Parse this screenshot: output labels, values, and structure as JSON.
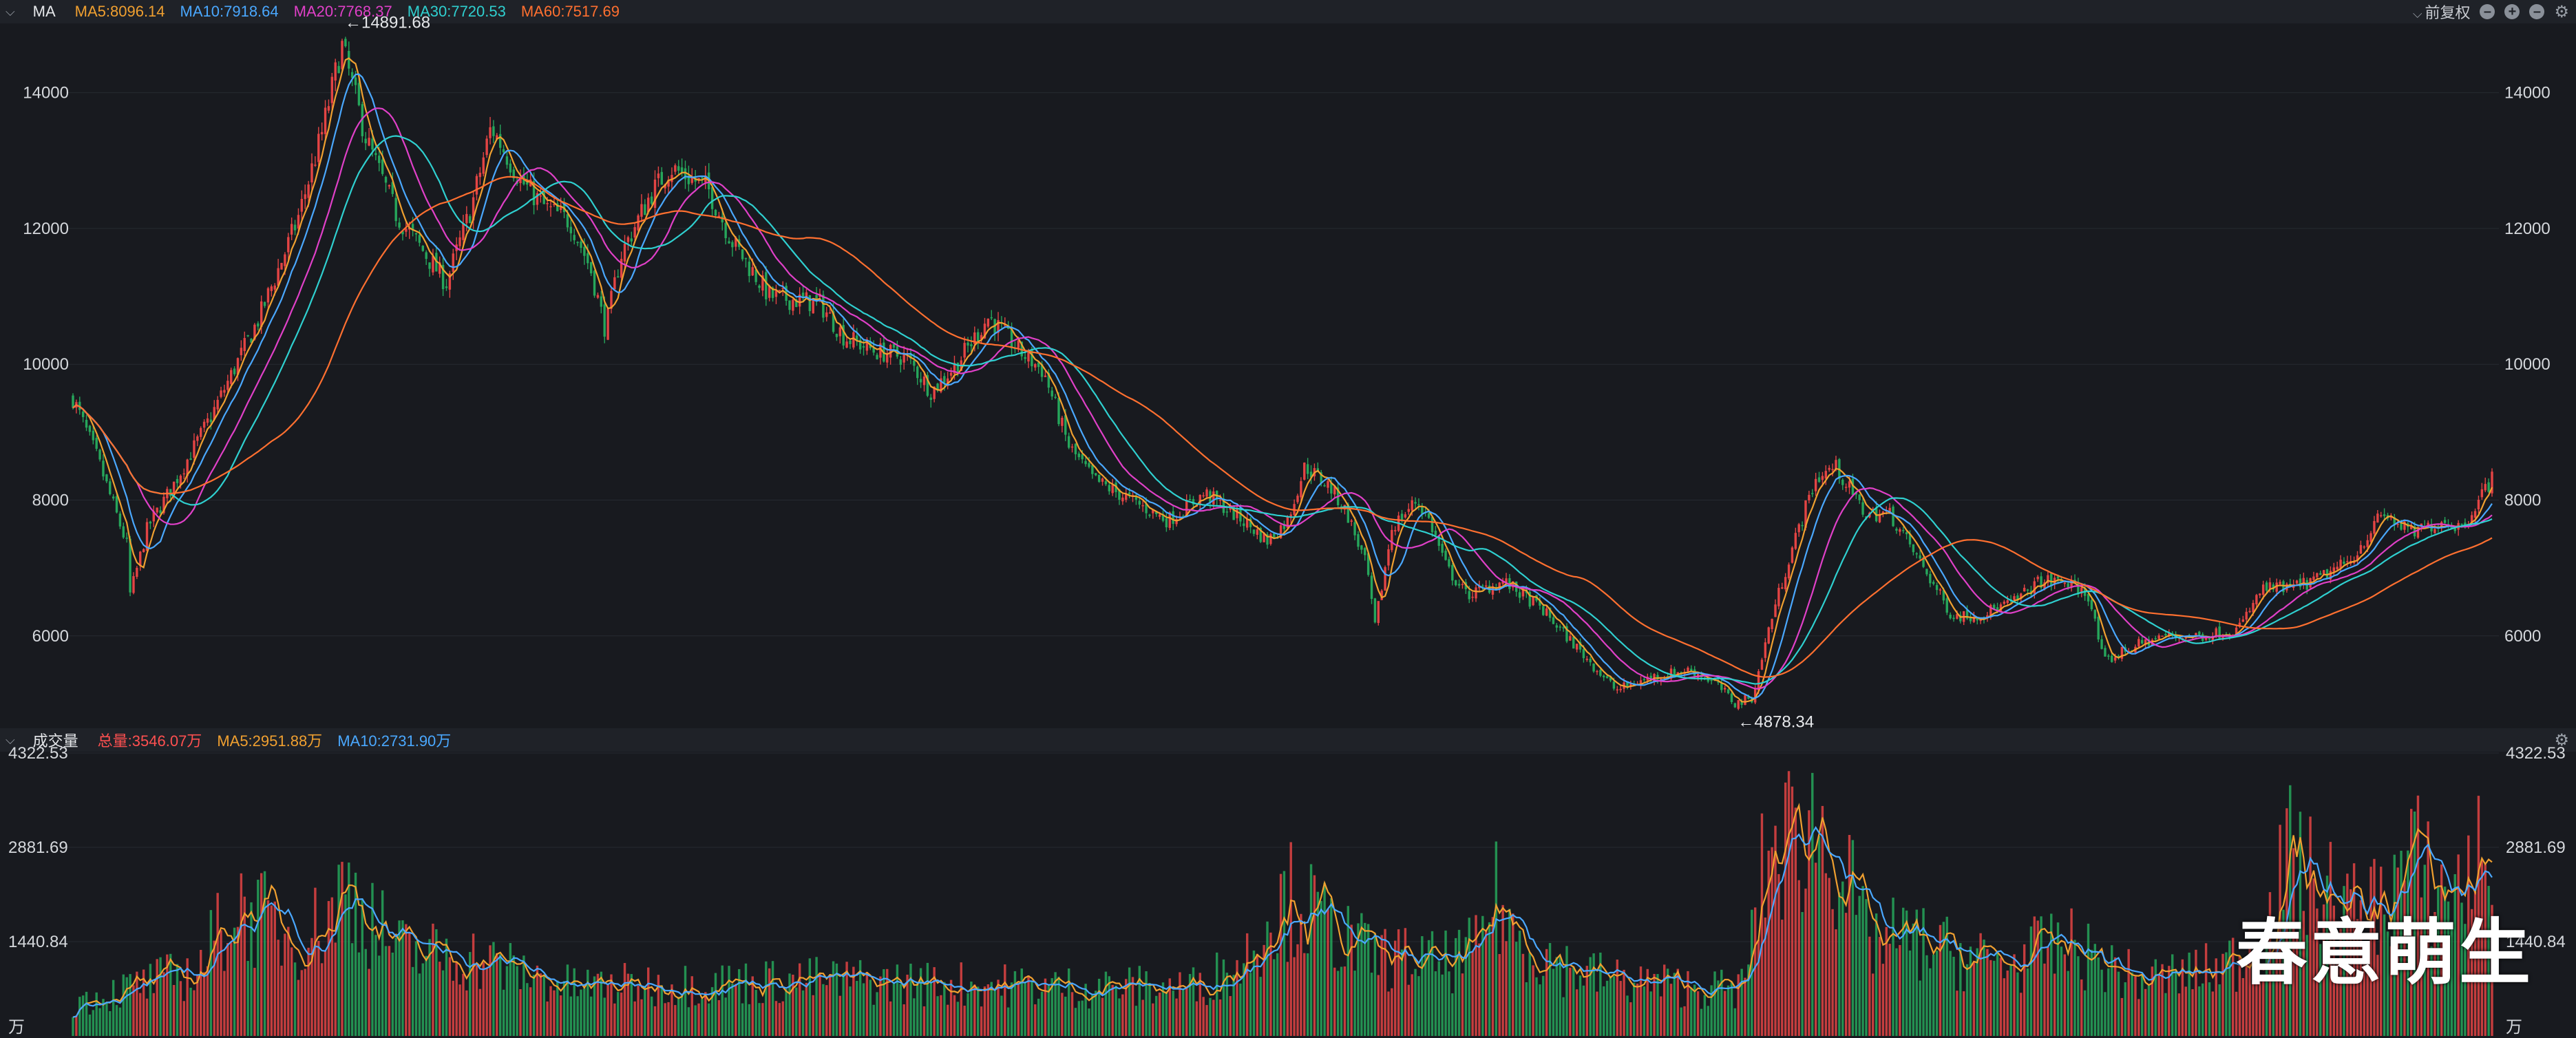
{
  "price_header": {
    "title": "MA",
    "legend": [
      {
        "label": "MA5:8096.14",
        "color": "#f0a030"
      },
      {
        "label": "MA10:7918.64",
        "color": "#4aa8ff"
      },
      {
        "label": "MA20:7768.37",
        "color": "#e040c8"
      },
      {
        "label": "MA30:7720.53",
        "color": "#2fd0d0"
      },
      {
        "label": "MA60:7517.69",
        "color": "#ff7030"
      }
    ],
    "adjust_label": "前复权"
  },
  "volume_header": {
    "title": "成交量",
    "legend": [
      {
        "label": "总量:3546.07万",
        "color": "#ff5050"
      },
      {
        "label": "MA5:2951.88万",
        "color": "#f0a030"
      },
      {
        "label": "MA10:2731.90万",
        "color": "#4aa8ff"
      }
    ]
  },
  "watermark": "春意萌生",
  "colors": {
    "up": "#e34444",
    "down": "#26a65b",
    "background": "#181a1f",
    "grid": "#262a31",
    "axis_text": "#d5d8dc"
  },
  "chart_data": [
    {
      "type": "candlestick",
      "ylim": [
        4700,
        15000
      ],
      "y_ticks": [
        6000,
        8000,
        10000,
        12000,
        14000
      ],
      "y_tick_labels": [
        "6000",
        "8000",
        "10000",
        "12000",
        "14000"
      ],
      "annotations": [
        {
          "text": "←14891.68",
          "value": 14891.68,
          "position": 0.108
        },
        {
          "text": "←4878.34",
          "value": 4878.34,
          "position": 0.668
        }
      ],
      "close_anchors": [
        [
          0,
          9500
        ],
        [
          0.01,
          8600
        ],
        [
          0.022,
          7300
        ],
        [
          0.023,
          6600
        ],
        [
          0.03,
          7600
        ],
        [
          0.04,
          8200
        ],
        [
          0.055,
          9200
        ],
        [
          0.075,
          10700
        ],
        [
          0.09,
          12100
        ],
        [
          0.1,
          13400
        ],
        [
          0.108,
          14700
        ],
        [
          0.118,
          13300
        ],
        [
          0.13,
          12200
        ],
        [
          0.14,
          11700
        ],
        [
          0.15,
          11200
        ],
        [
          0.16,
          12300
        ],
        [
          0.168,
          13500
        ],
        [
          0.18,
          12700
        ],
        [
          0.19,
          12300
        ],
        [
          0.2,
          12100
        ],
        [
          0.208,
          11400
        ],
        [
          0.214,
          10500
        ],
        [
          0.22,
          11600
        ],
        [
          0.232,
          12500
        ],
        [
          0.24,
          12900
        ],
        [
          0.255,
          12600
        ],
        [
          0.265,
          11800
        ],
        [
          0.28,
          11000
        ],
        [
          0.3,
          10900
        ],
        [
          0.31,
          10400
        ],
        [
          0.322,
          10200
        ],
        [
          0.335,
          10100
        ],
        [
          0.345,
          9600
        ],
        [
          0.355,
          10000
        ],
        [
          0.368,
          10700
        ],
        [
          0.38,
          10200
        ],
        [
          0.39,
          9900
        ],
        [
          0.4,
          8800
        ],
        [
          0.41,
          8300
        ],
        [
          0.42,
          8100
        ],
        [
          0.44,
          7700
        ],
        [
          0.455,
          8100
        ],
        [
          0.47,
          7700
        ],
        [
          0.48,
          7400
        ],
        [
          0.488,
          7700
        ],
        [
          0.495,
          8500
        ],
        [
          0.505,
          8200
        ],
        [
          0.512,
          7800
        ],
        [
          0.52,
          7000
        ],
        [
          0.523,
          6100
        ],
        [
          0.53,
          7600
        ],
        [
          0.54,
          8000
        ],
        [
          0.545,
          7700
        ],
        [
          0.552,
          7000
        ],
        [
          0.56,
          6600
        ],
        [
          0.575,
          6800
        ],
        [
          0.59,
          6400
        ],
        [
          0.605,
          5800
        ],
        [
          0.62,
          5200
        ],
        [
          0.635,
          5400
        ],
        [
          0.65,
          5500
        ],
        [
          0.66,
          5300
        ],
        [
          0.668,
          5000
        ],
        [
          0.675,
          5100
        ],
        [
          0.682,
          6200
        ],
        [
          0.69,
          7200
        ],
        [
          0.7,
          8300
        ],
        [
          0.708,
          8500
        ],
        [
          0.72,
          7800
        ],
        [
          0.73,
          7800
        ],
        [
          0.742,
          7100
        ],
        [
          0.755,
          6300
        ],
        [
          0.765,
          6300
        ],
        [
          0.78,
          6500
        ],
        [
          0.79,
          6800
        ],
        [
          0.8,
          6800
        ],
        [
          0.81,
          6600
        ],
        [
          0.816,
          5600
        ],
        [
          0.825,
          5800
        ],
        [
          0.84,
          6000
        ],
        [
          0.855,
          6000
        ],
        [
          0.87,
          6100
        ],
        [
          0.88,
          6700
        ],
        [
          0.89,
          6700
        ],
        [
          0.9,
          6800
        ],
        [
          0.915,
          7100
        ],
        [
          0.928,
          7800
        ],
        [
          0.94,
          7500
        ],
        [
          0.952,
          7700
        ],
        [
          0.96,
          7600
        ],
        [
          0.968,
          8100
        ],
        [
          0.972,
          8300
        ]
      ],
      "moving_averages": [
        {
          "name": "MA5",
          "value": 8096.14
        },
        {
          "name": "MA10",
          "value": 7918.64
        },
        {
          "name": "MA20",
          "value": 7768.37
        },
        {
          "name": "MA30",
          "value": 7720.53
        },
        {
          "name": "MA60",
          "value": 7517.69
        }
      ]
    },
    {
      "type": "bar",
      "unit": "万",
      "ylim": [
        0,
        4322.53
      ],
      "y_ticks": [
        1440.84,
        2881.69,
        4322.53
      ],
      "y_tick_labels": [
        "1440.84",
        "2881.69",
        "4322.53"
      ],
      "volume_anchors": [
        [
          0,
          500
        ],
        [
          0.02,
          700
        ],
        [
          0.05,
          1000
        ],
        [
          0.065,
          2000
        ],
        [
          0.07,
          1900
        ],
        [
          0.09,
          1500
        ],
        [
          0.1,
          1700
        ],
        [
          0.11,
          2300
        ],
        [
          0.13,
          1300
        ],
        [
          0.16,
          1200
        ],
        [
          0.2,
          750
        ],
        [
          0.25,
          800
        ],
        [
          0.3,
          850
        ],
        [
          0.35,
          800
        ],
        [
          0.4,
          750
        ],
        [
          0.45,
          750
        ],
        [
          0.47,
          1100
        ],
        [
          0.48,
          1850
        ],
        [
          0.49,
          2100
        ],
        [
          0.5,
          1800
        ],
        [
          0.52,
          1250
        ],
        [
          0.55,
          1100
        ],
        [
          0.565,
          1300
        ],
        [
          0.57,
          2200
        ],
        [
          0.58,
          1500
        ],
        [
          0.6,
          1050
        ],
        [
          0.62,
          850
        ],
        [
          0.65,
          750
        ],
        [
          0.67,
          700
        ],
        [
          0.675,
          1500
        ],
        [
          0.68,
          2700
        ],
        [
          0.69,
          3000
        ],
        [
          0.7,
          3250
        ],
        [
          0.71,
          2700
        ],
        [
          0.72,
          1500
        ],
        [
          0.74,
          1450
        ],
        [
          0.76,
          1200
        ],
        [
          0.78,
          1100
        ],
        [
          0.79,
          1300
        ],
        [
          0.8,
          1400
        ],
        [
          0.83,
          850
        ],
        [
          0.86,
          1000
        ],
        [
          0.88,
          1400
        ],
        [
          0.89,
          2700
        ],
        [
          0.9,
          2300
        ],
        [
          0.92,
          1800
        ],
        [
          0.93,
          2200
        ],
        [
          0.94,
          2700
        ],
        [
          0.95,
          2200
        ],
        [
          0.96,
          2300
        ],
        [
          0.972,
          3000
        ]
      ],
      "latest": {
        "total": 3546.07,
        "MA5": 2951.88,
        "MA10": 2731.9
      }
    }
  ]
}
